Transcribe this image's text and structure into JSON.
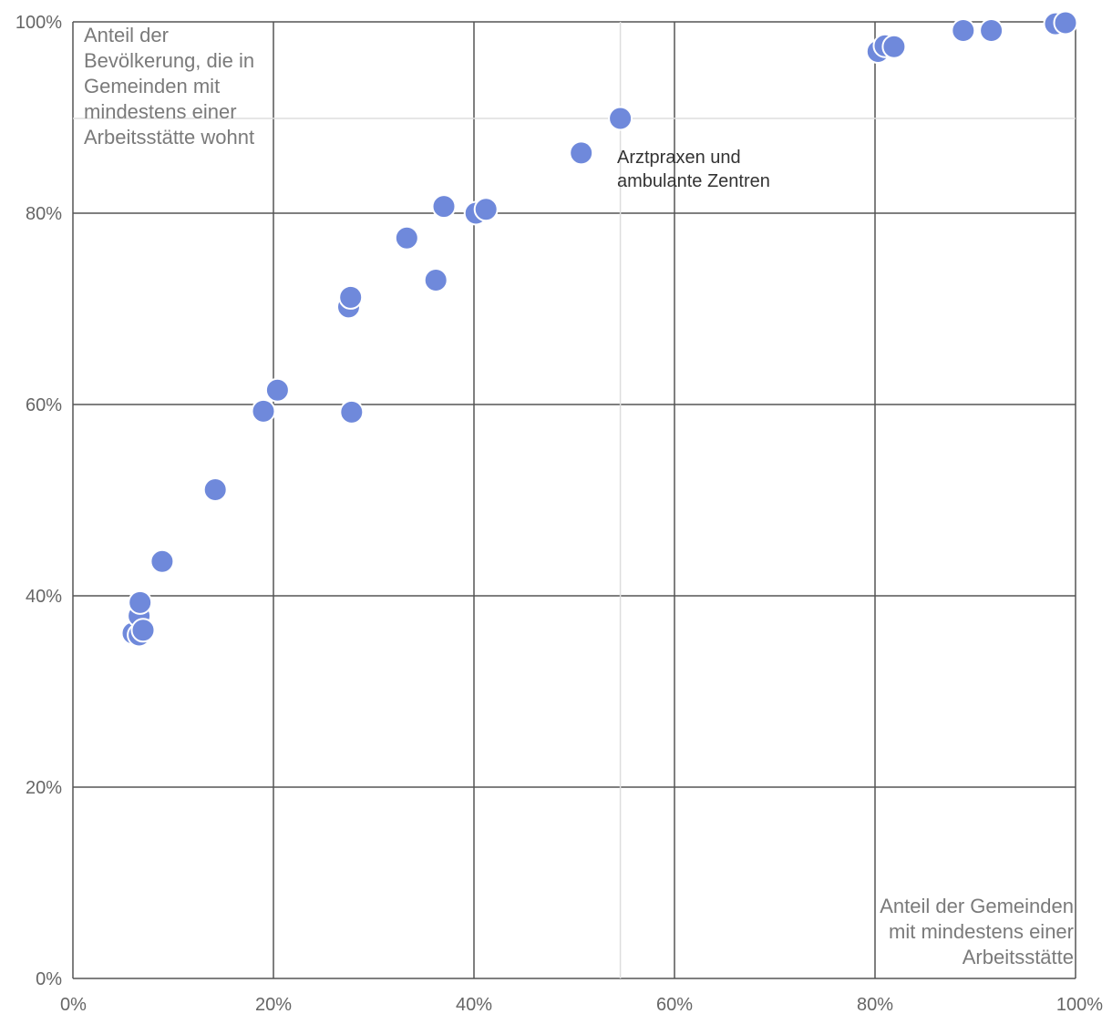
{
  "chart_data": {
    "type": "scatter",
    "title": "",
    "xlabel": "Anteil der Gemeinden mit mindestens einer Arbeitsstätte",
    "ylabel": "Anteil der Bevölkerung, die in Gemeinden mit mindestens einer Arbeitsstätte wohnt",
    "xlabel_lines": [
      "Anteil der Gemeinden",
      "mit mindestens einer",
      "Arbeitsstätte"
    ],
    "ylabel_lines": [
      "Anteil der",
      "Bevölkerung, die in",
      "Gemeinden mit",
      "mindestens einer",
      "Arbeitsstätte wohnt"
    ],
    "xlim": [
      0,
      100
    ],
    "ylim": [
      0,
      100
    ],
    "x_ticks": [
      {
        "value": 0,
        "label": "0%"
      },
      {
        "value": 20,
        "label": "20%"
      },
      {
        "value": 40,
        "label": "40%"
      },
      {
        "value": 60,
        "label": "60%"
      },
      {
        "value": 80,
        "label": "80%"
      },
      {
        "value": 100,
        "label": "100%"
      }
    ],
    "y_ticks": [
      {
        "value": 0,
        "label": "0%"
      },
      {
        "value": 20,
        "label": "20%"
      },
      {
        "value": 40,
        "label": "40%"
      },
      {
        "value": 60,
        "label": "60%"
      },
      {
        "value": 80,
        "label": "80%"
      },
      {
        "value": 100,
        "label": "100%"
      }
    ],
    "highlight": {
      "x": 54.6,
      "y": 89.9,
      "label_lines": [
        "Arztpraxen und",
        "ambulante Zentren"
      ]
    },
    "points": [
      {
        "x": 6.0,
        "y": 36.1
      },
      {
        "x": 6.6,
        "y": 35.9
      },
      {
        "x": 6.6,
        "y": 37.9
      },
      {
        "x": 6.7,
        "y": 39.3
      },
      {
        "x": 7.0,
        "y": 36.4
      },
      {
        "x": 8.9,
        "y": 43.6
      },
      {
        "x": 14.2,
        "y": 51.1
      },
      {
        "x": 19.0,
        "y": 59.3
      },
      {
        "x": 20.4,
        "y": 61.5
      },
      {
        "x": 27.5,
        "y": 70.2
      },
      {
        "x": 27.7,
        "y": 71.2
      },
      {
        "x": 27.8,
        "y": 59.2
      },
      {
        "x": 33.3,
        "y": 77.4
      },
      {
        "x": 36.2,
        "y": 73.0
      },
      {
        "x": 37.0,
        "y": 80.7
      },
      {
        "x": 40.2,
        "y": 80.0
      },
      {
        "x": 41.2,
        "y": 80.4
      },
      {
        "x": 50.7,
        "y": 86.3
      },
      {
        "x": 54.6,
        "y": 89.9
      },
      {
        "x": 80.3,
        "y": 96.9
      },
      {
        "x": 81.0,
        "y": 97.5
      },
      {
        "x": 81.9,
        "y": 97.4
      },
      {
        "x": 88.8,
        "y": 99.1
      },
      {
        "x": 91.6,
        "y": 99.1
      },
      {
        "x": 98.0,
        "y": 99.8
      },
      {
        "x": 99.0,
        "y": 99.9
      }
    ],
    "point_color": "#6f89db",
    "point_stroke": "#ffffff",
    "grid": true,
    "grid_color": "#555555",
    "highlight_grid_color": "#dddddd"
  }
}
